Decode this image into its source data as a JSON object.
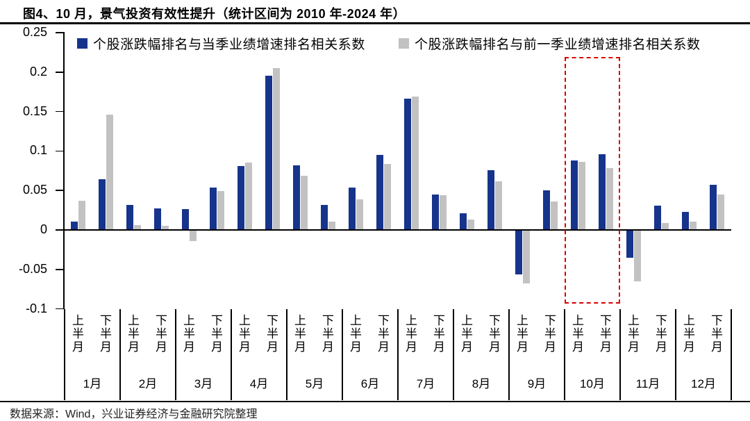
{
  "figure": {
    "title": "图4、10 月，景气投资有效性提升（统计区间为 2010 年-2024 年）",
    "source": "数据来源：Wind，兴业证券经济与金融研究院整理"
  },
  "colors": {
    "series_current_quarter": "#16348C",
    "series_previous_quarter": "#C2C2C2",
    "highlight_box": "#D90000",
    "axis": "#000000"
  },
  "chart_data": {
    "type": "bar",
    "title": "图4、10 月，景气投资有效性提升（统计区间为 2010 年-2024 年）",
    "months": [
      "1月",
      "2月",
      "3月",
      "4月",
      "5月",
      "6月",
      "7月",
      "8月",
      "9月",
      "10月",
      "11月",
      "12月"
    ],
    "half_month_labels": [
      "上半月",
      "下半月"
    ],
    "categories": [
      "1月上半月",
      "1月下半月",
      "2月上半月",
      "2月下半月",
      "3月上半月",
      "3月下半月",
      "4月上半月",
      "4月下半月",
      "5月上半月",
      "5月下半月",
      "6月上半月",
      "6月下半月",
      "7月上半月",
      "7月下半月",
      "8月上半月",
      "8月下半月",
      "9月上半月",
      "9月下半月",
      "10月上半月",
      "10月下半月",
      "11月上半月",
      "11月下半月",
      "12月上半月",
      "12月下半月"
    ],
    "series": [
      {
        "name": "个股涨跌幅排名与当季业绩增速排名相关系数",
        "color": "#16348C",
        "values": [
          0.011,
          0.064,
          0.032,
          0.027,
          0.026,
          0.054,
          0.081,
          0.195,
          0.082,
          0.032,
          0.054,
          0.095,
          0.166,
          0.045,
          0.021,
          0.076,
          -0.056,
          0.05,
          0.088,
          0.096,
          -0.035,
          0.031,
          0.023,
          0.057
        ]
      },
      {
        "name": "个股涨跌幅排名与前一季业绩增速排名相关系数",
        "color": "#C2C2C2",
        "values": [
          0.037,
          0.146,
          0.006,
          0.005,
          -0.014,
          0.049,
          0.085,
          0.205,
          0.069,
          0.011,
          0.039,
          0.084,
          0.169,
          0.044,
          0.013,
          0.062,
          -0.068,
          0.036,
          0.086,
          0.078,
          -0.065,
          0.009,
          0.011,
          0.045
        ]
      }
    ],
    "ylim": [
      -0.1,
      0.25
    ],
    "yticks": [
      "0.25",
      "0.2",
      "0.15",
      "0.1",
      "0.05",
      "0",
      "-0.05",
      "-0.1"
    ],
    "grid": false,
    "legend_position": "top-inside",
    "highlight": {
      "months": [
        "10月"
      ],
      "style": "red-dashed-box"
    }
  }
}
